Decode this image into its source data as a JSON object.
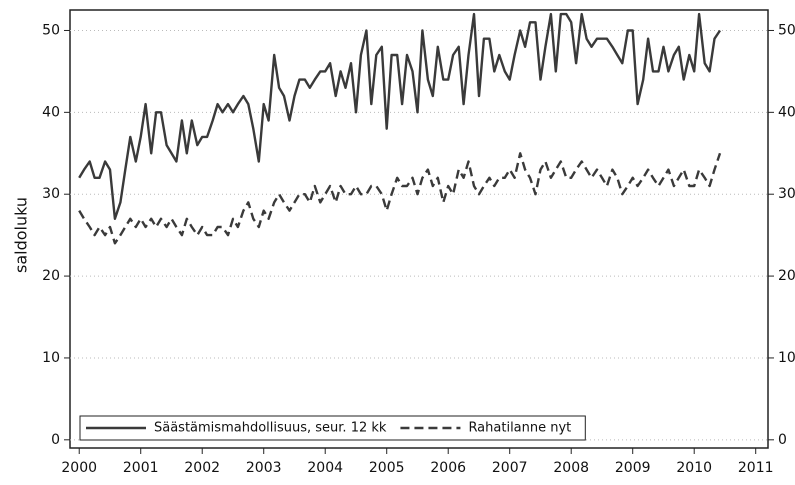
{
  "chart_data": {
    "type": "line",
    "y_label": "saldoluku",
    "x": [
      2000,
      2000.08,
      2000.17,
      2000.25,
      2000.33,
      2000.42,
      2000.5,
      2000.58,
      2000.67,
      2000.75,
      2000.83,
      2000.92,
      2001,
      2001.08,
      2001.17,
      2001.25,
      2001.33,
      2001.42,
      2001.5,
      2001.58,
      2001.67,
      2001.75,
      2001.83,
      2001.92,
      2002,
      2002.08,
      2002.17,
      2002.25,
      2002.33,
      2002.42,
      2002.5,
      2002.58,
      2002.67,
      2002.75,
      2002.83,
      2002.92,
      2003,
      2003.08,
      2003.17,
      2003.25,
      2003.33,
      2003.42,
      2003.5,
      2003.58,
      2003.67,
      2003.75,
      2003.83,
      2003.92,
      2004,
      2004.08,
      2004.17,
      2004.25,
      2004.33,
      2004.42,
      2004.5,
      2004.58,
      2004.67,
      2004.75,
      2004.83,
      2004.92,
      2005,
      2005.08,
      2005.17,
      2005.25,
      2005.33,
      2005.42,
      2005.5,
      2005.58,
      2005.67,
      2005.75,
      2005.83,
      2005.92,
      2006,
      2006.08,
      2006.17,
      2006.25,
      2006.33,
      2006.42,
      2006.5,
      2006.58,
      2006.67,
      2006.75,
      2006.83,
      2006.92,
      2007,
      2007.08,
      2007.17,
      2007.25,
      2007.33,
      2007.42,
      2007.5,
      2007.58,
      2007.67,
      2007.75,
      2007.83,
      2007.92,
      2008,
      2008.08,
      2008.17,
      2008.25,
      2008.33,
      2008.42,
      2008.5,
      2008.58,
      2008.67,
      2008.75,
      2008.83,
      2008.92,
      2009,
      2009.08,
      2009.17,
      2009.25,
      2009.33,
      2009.42,
      2009.5,
      2009.58,
      2009.67,
      2009.75,
      2009.83,
      2009.92,
      2010,
      2010.08,
      2010.17,
      2010.25,
      2010.33,
      2010.42
    ],
    "series": [
      {
        "name": "Säästämismahdollisuus, seur. 12 kk",
        "color": "#3a3a3a",
        "dash": false,
        "values": [
          32,
          33,
          34,
          32,
          32,
          34,
          33,
          27,
          29,
          33,
          37,
          34,
          37,
          41,
          35,
          40,
          40,
          36,
          35,
          34,
          39,
          35,
          39,
          36,
          37,
          37,
          39,
          41,
          40,
          41,
          40,
          41,
          42,
          41,
          38,
          34,
          41,
          39,
          47,
          43,
          42,
          39,
          42,
          44,
          44,
          43,
          44,
          45,
          45,
          46,
          42,
          45,
          43,
          46,
          40,
          47,
          50,
          41,
          47,
          48,
          38,
          47,
          47,
          41,
          47,
          45,
          40,
          50,
          44,
          42,
          48,
          44,
          44,
          47,
          48,
          41,
          47,
          52,
          42,
          49,
          49,
          45,
          47,
          45,
          44,
          47,
          50,
          48,
          51,
          51,
          44,
          48,
          52,
          45,
          52,
          52,
          51,
          46,
          52,
          49,
          48,
          49,
          49,
          49,
          48,
          47,
          46,
          50,
          50,
          41,
          44,
          49,
          45,
          45,
          48,
          45,
          47,
          48,
          44,
          47,
          45,
          52,
          46,
          45,
          49,
          50
        ]
      },
      {
        "name": "Rahatilanne nyt",
        "color": "#3a3a3a",
        "dash": true,
        "values": [
          28,
          27,
          26,
          25,
          26,
          25,
          26,
          24,
          25,
          26,
          27,
          26,
          27,
          26,
          27,
          26,
          27,
          26,
          27,
          26,
          25,
          27,
          26,
          25,
          26,
          25,
          25,
          26,
          26,
          25,
          27,
          26,
          28,
          29,
          27,
          26,
          28,
          27,
          29,
          30,
          29,
          28,
          29,
          30,
          30,
          29,
          31,
          29,
          30,
          31,
          29,
          31,
          30,
          30,
          31,
          30,
          30,
          31,
          31,
          30,
          28,
          30,
          32,
          31,
          31,
          32,
          30,
          32,
          33,
          31,
          32,
          29,
          31,
          30,
          33,
          32,
          34,
          31,
          30,
          31,
          32,
          31,
          32,
          32,
          33,
          32,
          35,
          33,
          32,
          30,
          33,
          34,
          32,
          33,
          34,
          32,
          32,
          33,
          34,
          33,
          32,
          33,
          32,
          31,
          33,
          32,
          30,
          31,
          32,
          31,
          32,
          33,
          32,
          31,
          32,
          33,
          31,
          32,
          33,
          31,
          31,
          33,
          32,
          31,
          33,
          35
        ]
      }
    ],
    "xlim": [
      1999.85,
      2011.2
    ],
    "ylim": [
      -1,
      52.5
    ],
    "xticks": [
      2000,
      2001,
      2002,
      2003,
      2004,
      2005,
      2006,
      2007,
      2008,
      2009,
      2010,
      2011
    ],
    "yticks": [
      0,
      10,
      20,
      30,
      40,
      50
    ],
    "grid": true,
    "right_axis_labels": true,
    "legend": "bottom-left"
  }
}
